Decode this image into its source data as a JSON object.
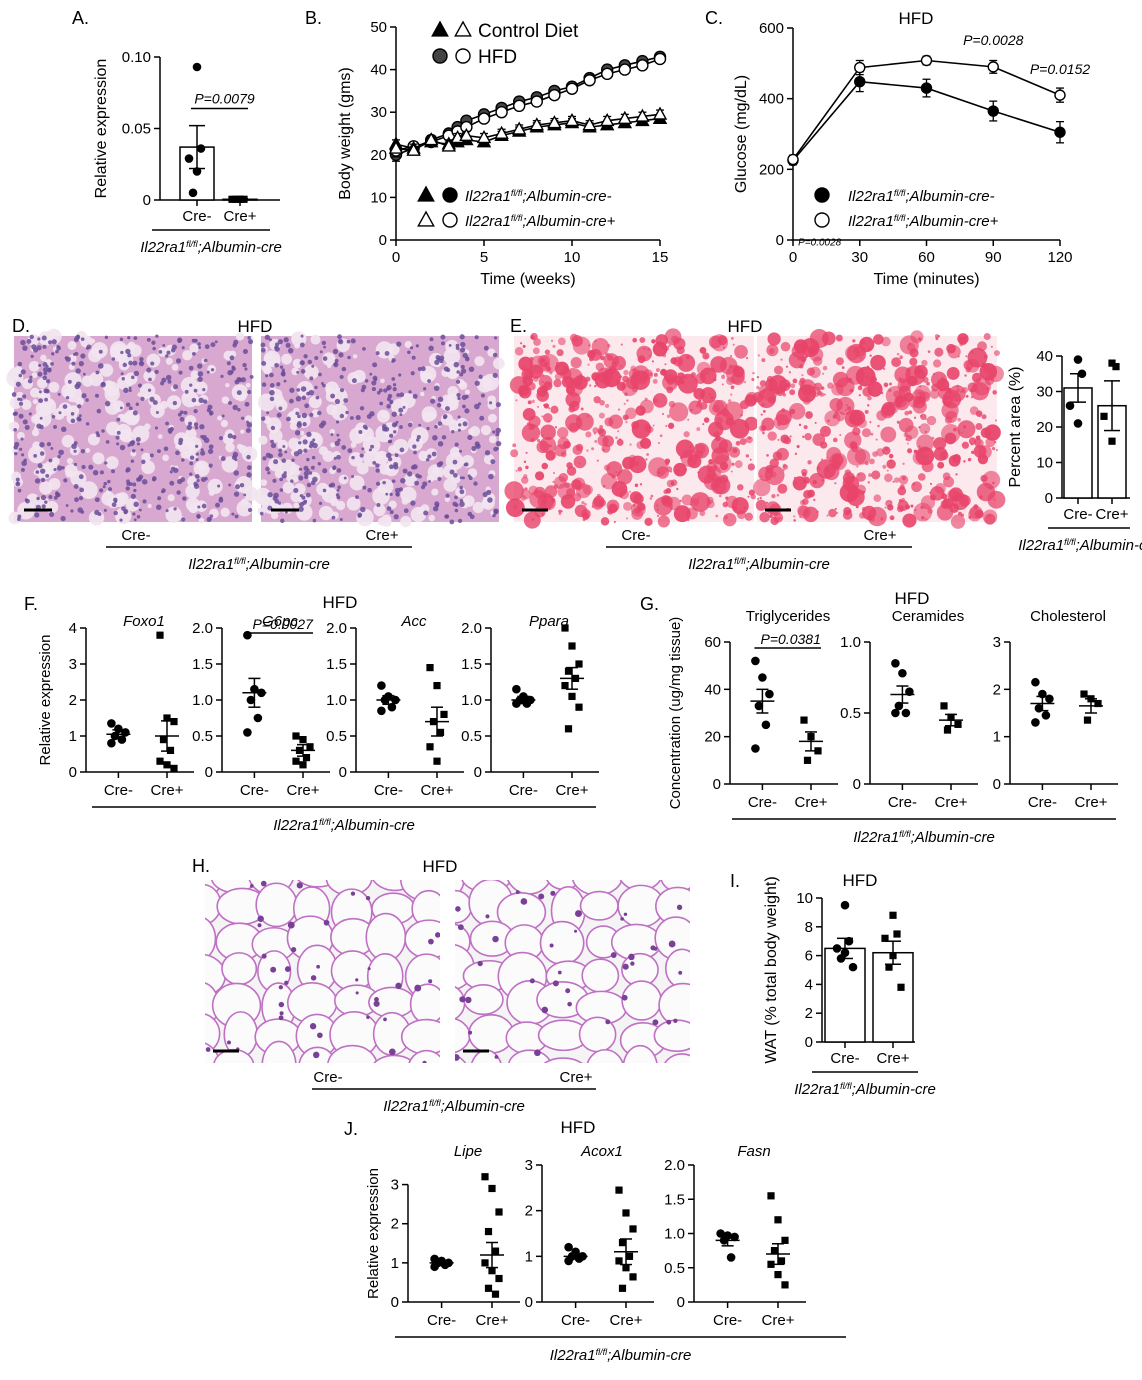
{
  "shared_label": {
    "gene": "Il22ra1",
    "sup": "fl/fl",
    "rest": ";Albumin-cre"
  },
  "chart_data": [
    {
      "id": "A",
      "type": "bar",
      "panel_label": "A.",
      "ylabel": "Relative expression",
      "ylim": [
        0,
        0.1
      ],
      "yticks": [
        0,
        0.05,
        0.1
      ],
      "ytick_labels": [
        "0",
        "0.05",
        "0.10"
      ],
      "categories": [
        "Cre-",
        "Cre+"
      ],
      "values": [
        0.037,
        0.0005
      ],
      "sem": [
        0.015,
        0.0004
      ],
      "points": [
        [
          0.093,
          0.036,
          0.029,
          0.02,
          0.005
        ],
        [
          0.0005,
          0.0005,
          0.0005,
          0.0005,
          0.0005
        ]
      ],
      "markers": [
        "circle",
        "square"
      ],
      "annotations": [
        {
          "text": "P=0.0079",
          "between": [
            0,
            1
          ],
          "y": 0.064
        }
      ],
      "group_label": true
    },
    {
      "id": "B",
      "type": "line",
      "panel_label": "B.",
      "xlabel": "Time (weeks)",
      "ylabel": "Body weight (gms)",
      "xlim": [
        0,
        15
      ],
      "ylim": [
        0,
        50
      ],
      "xticks": [
        0,
        5,
        10,
        15
      ],
      "yticks": [
        0,
        10,
        20,
        30,
        40,
        50
      ],
      "x": [
        0,
        1,
        2,
        3,
        3.5,
        4,
        5,
        6,
        7,
        8,
        9,
        10,
        11,
        12,
        13,
        14,
        15
      ],
      "series": [
        {
          "marker": "circle",
          "fill": "#444444",
          "values": [
            20,
            21.5,
            23.5,
            25,
            26.5,
            28,
            29.5,
            31,
            32.5,
            33.5,
            35,
            36,
            38,
            40,
            41,
            42,
            43
          ],
          "sem": [
            1.5,
            1,
            1,
            1,
            1,
            1,
            1,
            1,
            1,
            1,
            1,
            1,
            1,
            1,
            1,
            1,
            1
          ]
        },
        {
          "marker": "circle",
          "fill": "#ffffff",
          "values": [
            21,
            22,
            23,
            24.5,
            25.5,
            26.5,
            28.5,
            30,
            31.5,
            32.5,
            34,
            35.5,
            37.5,
            39,
            40,
            41,
            42.5
          ],
          "sem": [
            1.5,
            1,
            1,
            1,
            1,
            1,
            1,
            1,
            1,
            1,
            1,
            1,
            1,
            1,
            1,
            1,
            1
          ]
        },
        {
          "marker": "triangle",
          "fill": "#000000",
          "values": [
            22.5,
            21.5,
            23,
            22.5,
            23,
            23.5,
            23,
            24.5,
            25.5,
            26.5,
            27,
            27.5,
            26.5,
            27,
            27.5,
            28,
            28.5
          ],
          "sem": [
            1,
            1,
            1,
            1,
            1,
            1,
            1,
            1,
            1,
            1,
            1,
            1,
            1,
            1,
            1,
            1,
            1
          ]
        },
        {
          "marker": "triangle",
          "fill": "#ffffff",
          "values": [
            21.5,
            21,
            23.5,
            22,
            24,
            24.5,
            24,
            25,
            26,
            27,
            27.5,
            28,
            27,
            28,
            28.5,
            29,
            29.5
          ],
          "sem": [
            1,
            1,
            1,
            1,
            1,
            1,
            1,
            1,
            1,
            1,
            1,
            1,
            1,
            1,
            1,
            1,
            1
          ]
        }
      ],
      "legend_top": [
        {
          "markers": [
            "triangle",
            "triangle-open"
          ],
          "label": "Control Diet"
        },
        {
          "markers": [
            "circle-grey",
            "circle-open"
          ],
          "label": "HFD"
        }
      ],
      "legend_bottom": [
        {
          "markers": [
            "triangle",
            "circle"
          ],
          "suffix": "-"
        },
        {
          "markers": [
            "triangle-open",
            "circle-open"
          ],
          "suffix": "+"
        }
      ]
    },
    {
      "id": "C",
      "type": "line",
      "panel_label": "C.",
      "title": "HFD",
      "xlabel": "Time (minutes)",
      "ylabel": "Glucose (mg/dL)",
      "xlim": [
        0,
        120
      ],
      "ylim": [
        0,
        600
      ],
      "xticks": [
        0,
        30,
        60,
        90,
        120
      ],
      "yticks": [
        0,
        200,
        400,
        600
      ],
      "x": [
        0,
        30,
        60,
        90,
        120
      ],
      "series": [
        {
          "marker": "circle",
          "fill": "#000000",
          "values": [
            225,
            448,
            430,
            365,
            305
          ],
          "sem": [
            12,
            28,
            25,
            28,
            30
          ]
        },
        {
          "marker": "circle",
          "fill": "#ffffff",
          "values": [
            228,
            488,
            508,
            490,
            410
          ],
          "sem": [
            12,
            20,
            12,
            18,
            20
          ]
        }
      ],
      "annotations": [
        {
          "text": "P=0.0028",
          "x": 90,
          "y": 552
        },
        {
          "text": "P=0.0152",
          "x": 120,
          "y": 470
        },
        {
          "text": "P=0.0028",
          "x": 12,
          "y": -15,
          "small": true
        }
      ],
      "legend": [
        {
          "marker": "circle-black",
          "suffix": "-"
        },
        {
          "marker": "circle-open",
          "suffix": "+"
        }
      ]
    },
    {
      "id": "E",
      "type": "bar",
      "panel_label": "",
      "ylabel": "Percent area (%)",
      "ylim": [
        0,
        40
      ],
      "yticks": [
        0,
        10,
        20,
        30,
        40
      ],
      "ytick_labels": [
        "0",
        "10",
        "20",
        "30",
        "40"
      ],
      "categories": [
        "Cre-",
        "Cre+"
      ],
      "values": [
        31,
        26
      ],
      "sem": [
        4,
        7
      ],
      "points": [
        [
          39,
          35,
          26,
          21
        ],
        [
          38,
          37,
          23,
          16
        ]
      ],
      "markers": [
        "circle",
        "square"
      ],
      "group_label": true
    },
    {
      "id": "F",
      "type": "scatter",
      "panel_label": "F.",
      "title": "HFD",
      "ylabel": "Relative expression",
      "categories": [
        "Cre-",
        "Cre+"
      ],
      "subplots": [
        {
          "name": "Foxo1",
          "ylim": [
            0,
            4
          ],
          "yticks": [
            0,
            1,
            2,
            3,
            4
          ],
          "ytick_labels": [
            "0",
            "1",
            "2",
            "3",
            "4"
          ],
          "means": [
            1.05,
            1.0
          ],
          "sem": [
            0.12,
            0.42
          ],
          "points": [
            [
              1.35,
              1.2,
              1.1,
              1.0,
              0.9,
              0.8
            ],
            [
              3.8,
              1.5,
              1.4,
              0.9,
              0.6,
              0.3,
              0.2,
              0.1
            ]
          ]
        },
        {
          "name": "G6pc",
          "ylim": [
            0,
            2
          ],
          "yticks": [
            0,
            0.5,
            1,
            1.5,
            2
          ],
          "ytick_labels": [
            "0",
            "0.5",
            "1.0",
            "1.5",
            "2.0"
          ],
          "means": [
            1.1,
            0.3
          ],
          "sem": [
            0.2,
            0.08
          ],
          "points": [
            [
              1.9,
              1.15,
              1.1,
              1.0,
              0.75,
              0.55
            ],
            [
              0.5,
              0.45,
              0.35,
              0.3,
              0.2,
              0.15,
              0.1
            ]
          ],
          "annotation": "P=0.0027"
        },
        {
          "name": "Acc",
          "ylim": [
            0,
            2
          ],
          "yticks": [
            0,
            0.5,
            1,
            1.5,
            2
          ],
          "ytick_labels": [
            "0",
            "0.5",
            "1.0",
            "1.5",
            "2.0"
          ],
          "means": [
            1.0,
            0.7
          ],
          "sem": [
            0.06,
            0.2
          ],
          "points": [
            [
              1.2,
              1.05,
              1.0,
              1.0,
              0.9,
              0.85
            ],
            [
              1.45,
              1.2,
              0.8,
              0.7,
              0.55,
              0.35,
              0.15
            ]
          ]
        },
        {
          "name": "Ppara",
          "ylim": [
            0,
            2
          ],
          "yticks": [
            0,
            0.5,
            1,
            1.5,
            2
          ],
          "ytick_labels": [
            "0",
            "0.5",
            "1.0",
            "1.5",
            "2.0"
          ],
          "means": [
            1.0,
            1.3
          ],
          "sem": [
            0.05,
            0.15
          ],
          "points": [
            [
              1.15,
              1.05,
              1.0,
              1.0,
              0.95,
              0.95
            ],
            [
              2.0,
              1.75,
              1.5,
              1.4,
              1.3,
              1.2,
              1.05,
              0.9,
              0.6
            ]
          ]
        }
      ]
    },
    {
      "id": "G",
      "type": "scatter",
      "panel_label": "G.",
      "title": "HFD",
      "ylabel": "Concentration (ug/mg tissue)",
      "categories": [
        "Cre-",
        "Cre+"
      ],
      "subplots": [
        {
          "name": "Triglycerides",
          "ylim": [
            0,
            60
          ],
          "yticks": [
            0,
            20,
            40,
            60
          ],
          "ytick_labels": [
            "0",
            "20",
            "40",
            "60"
          ],
          "means": [
            35,
            18
          ],
          "sem": [
            5,
            4
          ],
          "points": [
            [
              52,
              45,
              38,
              33,
              25,
              15
            ],
            [
              27,
              20,
              14,
              10
            ]
          ],
          "annotation": "P=0.0381"
        },
        {
          "name": "Ceramides",
          "ylim": [
            0,
            1
          ],
          "yticks": [
            0,
            0.5,
            1
          ],
          "ytick_labels": [
            "0",
            "0.5",
            "1.0"
          ],
          "means": [
            0.63,
            0.45
          ],
          "sem": [
            0.06,
            0.04
          ],
          "points": [
            [
              0.85,
              0.78,
              0.65,
              0.55,
              0.5,
              0.5
            ],
            [
              0.55,
              0.47,
              0.42,
              0.38
            ]
          ]
        },
        {
          "name": "Cholesterol",
          "ylim": [
            0,
            3
          ],
          "yticks": [
            0,
            1,
            2,
            3
          ],
          "ytick_labels": [
            "0",
            "1",
            "2",
            "3"
          ],
          "means": [
            1.7,
            1.65
          ],
          "sem": [
            0.15,
            0.15
          ],
          "points": [
            [
              2.15,
              1.9,
              1.8,
              1.6,
              1.45,
              1.3
            ],
            [
              1.9,
              1.8,
              1.7,
              1.35
            ]
          ]
        }
      ]
    },
    {
      "id": "I",
      "type": "bar",
      "panel_label": "I.",
      "title": "HFD",
      "ylabel": "WAT (% total body weight)",
      "ylim": [
        0,
        10
      ],
      "yticks": [
        0,
        2,
        4,
        6,
        8,
        10
      ],
      "ytick_labels": [
        "0",
        "2",
        "4",
        "6",
        "8",
        "10"
      ],
      "categories": [
        "Cre-",
        "Cre+"
      ],
      "values": [
        6.5,
        6.2
      ],
      "sem": [
        0.7,
        0.8
      ],
      "points": [
        [
          9.5,
          7.0,
          6.5,
          6.2,
          5.8,
          5.2
        ],
        [
          8.8,
          7.5,
          7.2,
          6.0,
          5.2,
          3.8
        ]
      ],
      "markers": [
        "circle",
        "square"
      ],
      "group_label": true
    },
    {
      "id": "J",
      "type": "scatter",
      "panel_label": "J.",
      "title": "HFD",
      "ylabel": "Relative expression",
      "categories": [
        "Cre-",
        "Cre+"
      ],
      "subplots": [
        {
          "name": "Lipe",
          "ylim": [
            0,
            3.5
          ],
          "yticks": [
            0,
            1,
            2,
            3
          ],
          "ytick_labels": [
            "0",
            "1",
            "2",
            "3"
          ],
          "means": [
            1.0,
            1.2
          ],
          "sem": [
            0.05,
            0.32
          ],
          "points": [
            [
              1.1,
              1.05,
              1.0,
              1.0,
              0.95,
              0.9
            ],
            [
              3.2,
              2.9,
              2.3,
              1.8,
              1.3,
              1.0,
              0.8,
              0.6,
              0.35,
              0.2
            ]
          ]
        },
        {
          "name": "Acox1",
          "ylim": [
            0,
            3
          ],
          "yticks": [
            0,
            1,
            2,
            3
          ],
          "ytick_labels": [
            "0",
            "1",
            "2",
            "3"
          ],
          "means": [
            1.0,
            1.1
          ],
          "sem": [
            0.05,
            0.28
          ],
          "points": [
            [
              1.2,
              1.1,
              1.0,
              1.0,
              0.95,
              0.9
            ],
            [
              2.45,
              1.95,
              1.6,
              1.3,
              1.0,
              0.9,
              0.75,
              0.55,
              0.3
            ]
          ]
        },
        {
          "name": "Fasn",
          "ylim": [
            0,
            2
          ],
          "yticks": [
            0,
            0.5,
            1,
            1.5,
            2
          ],
          "ytick_labels": [
            "0",
            "0.5",
            "1.0",
            "1.5",
            "2.0"
          ],
          "means": [
            0.9,
            0.7
          ],
          "sem": [
            0.08,
            0.15
          ],
          "points": [
            [
              1.0,
              0.97,
              0.95,
              0.9,
              0.65
            ],
            [
              1.55,
              1.2,
              0.9,
              0.75,
              0.6,
              0.55,
              0.4,
              0.25
            ]
          ]
        }
      ]
    }
  ],
  "micrographs": [
    {
      "id": "D",
      "panel_label": "D.",
      "title": "HFD",
      "stain": "he",
      "left_label": "Cre-",
      "right_label": "Cre+"
    },
    {
      "id": "E",
      "panel_label": "E.",
      "title": "HFD",
      "stain": "oil-red-o",
      "left_label": "Cre-",
      "right_label": "Cre+"
    },
    {
      "id": "H",
      "panel_label": "H.",
      "title": "HFD",
      "stain": "adipose",
      "left_label": "Cre-",
      "right_label": "Cre+"
    }
  ],
  "colors": {
    "he_background": "#d9a8d0",
    "he_nuclei": "#6a4e9a",
    "oil_red": "#e8446a",
    "oil_background": "#fbe9ee",
    "adipose_membrane": "#c070c4",
    "adipose_background": "#f4f4f5"
  }
}
